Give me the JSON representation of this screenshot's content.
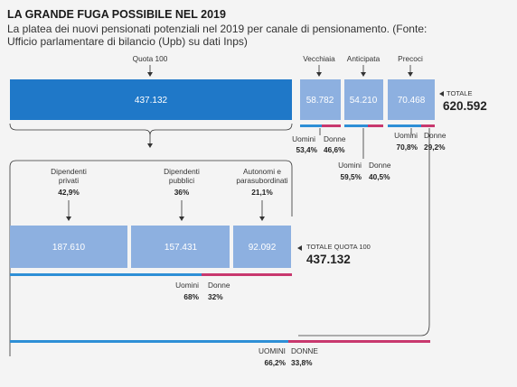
{
  "header": {
    "title": "LA GRANDE FUGA POSSIBILE NEL 2019",
    "subtitle_line1": "La platea dei nuovi pensionati potenziali nel 2019 per canale di pensionamento. (Fonte:",
    "subtitle_line2": "Ufficio parlamentare di bilancio (Upb) su dati Inps)"
  },
  "colors": {
    "dark_blue": "#1f78c8",
    "light_blue": "#8db0e0",
    "men_blue": "#2e8fd6",
    "women_pink": "#c8386e",
    "background": "#f4f4f4"
  },
  "chart_data": {
    "type": "bar",
    "top_row": {
      "categories": [
        "Quota 100",
        "Vecchiaia",
        "Anticipata",
        "Precoci"
      ],
      "values": [
        437132,
        58782,
        54210,
        70468
      ],
      "value_labels": [
        "437.132",
        "58.782",
        "54.210",
        "70.468"
      ],
      "total_label": "TOTALE",
      "total_value": "620.592",
      "gender_splits": [
        {
          "of": "Vecchiaia",
          "men_label": "Uomini",
          "women_label": "Donne",
          "men": "53,4%",
          "women": "46,6%",
          "men_share": 0.534
        },
        {
          "of": "Anticipata",
          "men_label": "Uomini",
          "women_label": "Donne",
          "men": "59,5%",
          "women": "40,5%",
          "men_share": 0.595
        },
        {
          "of": "Precoci",
          "men_label": "Uomini",
          "women_label": "Donne",
          "men": "70,8%",
          "women": "29,2%",
          "men_share": 0.708
        }
      ]
    },
    "quota100_breakdown": {
      "categories": [
        {
          "line1": "Dipendenti",
          "line2": "privati",
          "pct": "42,9%"
        },
        {
          "line1": "Dipendenti",
          "line2": "pubblici",
          "pct": "36%"
        },
        {
          "line1": "Autonomi e",
          "line2": "parasubordinati",
          "pct": "21,1%"
        }
      ],
      "values": [
        187610,
        157431,
        92092
      ],
      "value_labels": [
        "187.610",
        "157.431",
        "92.092"
      ],
      "total_label": "TOTALE QUOTA 100",
      "total_value": "437.132",
      "gender": {
        "men_label": "Uomini",
        "women_label": "Donne",
        "men": "68%",
        "women": "32%",
        "men_share": 0.68
      }
    },
    "overall_gender": {
      "men_label": "UOMINI",
      "women_label": "DONNE",
      "men": "66,2%",
      "women": "33,8%",
      "men_share": 0.662
    }
  }
}
